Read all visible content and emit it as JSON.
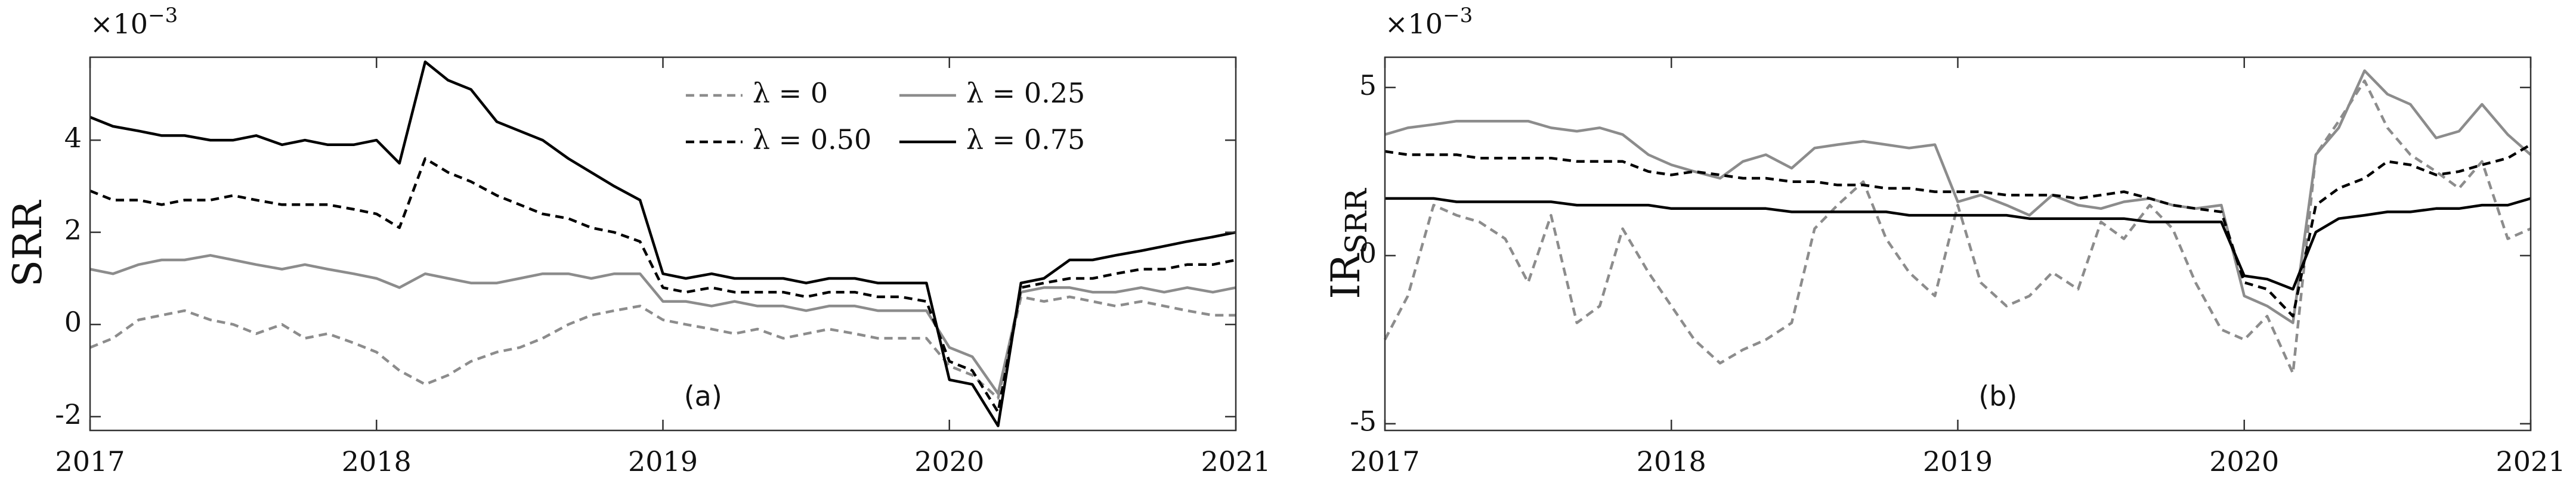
{
  "chart_data": [
    {
      "type": "line",
      "ylabel": "SRR",
      "multiplier": "×10",
      "multiplier_exponent": "−3",
      "panel_label": "(a)",
      "xlim": [
        2017,
        2021
      ],
      "xticks": [
        2017,
        2018,
        2019,
        2020,
        2021
      ],
      "ylim": [
        -2.3,
        5.8
      ],
      "yticks": [
        -2,
        0,
        2,
        4
      ],
      "grid": false,
      "legend": "top-right",
      "x": [
        2017,
        2017.08,
        2017.17,
        2017.25,
        2017.33,
        2017.42,
        2017.5,
        2017.58,
        2017.67,
        2017.75,
        2017.83,
        2017.92,
        2018,
        2018.08,
        2018.17,
        2018.25,
        2018.33,
        2018.42,
        2018.5,
        2018.58,
        2018.67,
        2018.75,
        2018.83,
        2018.92,
        2019,
        2019.08,
        2019.17,
        2019.25,
        2019.33,
        2019.42,
        2019.5,
        2019.58,
        2019.67,
        2019.75,
        2019.83,
        2019.92,
        2020,
        2020.08,
        2020.17,
        2020.25,
        2020.33,
        2020.42,
        2020.5,
        2020.58,
        2020.67,
        2020.75,
        2020.83,
        2020.92,
        2021
      ],
      "series": [
        {
          "name": "λ = 0",
          "color": "#8c8c8c",
          "line_style": "dash",
          "values": [
            -0.5,
            -0.3,
            0.1,
            0.2,
            0.3,
            0.1,
            0.0,
            -0.2,
            0.0,
            -0.3,
            -0.2,
            -0.4,
            -0.6,
            -1.0,
            -1.3,
            -1.1,
            -0.8,
            -0.6,
            -0.5,
            -0.3,
            0.0,
            0.2,
            0.3,
            0.4,
            0.1,
            0.0,
            -0.1,
            -0.2,
            -0.1,
            -0.3,
            -0.2,
            -0.1,
            -0.2,
            -0.3,
            -0.3,
            -0.3,
            -0.9,
            -1.1,
            -1.6,
            0.6,
            0.5,
            0.6,
            0.5,
            0.4,
            0.5,
            0.4,
            0.3,
            0.2,
            0.2
          ]
        },
        {
          "name": "λ = 0.25",
          "color": "#8c8c8c",
          "line_style": "solid",
          "values": [
            1.2,
            1.1,
            1.3,
            1.4,
            1.4,
            1.5,
            1.4,
            1.3,
            1.2,
            1.3,
            1.2,
            1.1,
            1.0,
            0.8,
            1.1,
            1.0,
            0.9,
            0.9,
            1.0,
            1.1,
            1.1,
            1.0,
            1.1,
            1.1,
            0.5,
            0.5,
            0.4,
            0.5,
            0.4,
            0.4,
            0.3,
            0.4,
            0.4,
            0.3,
            0.3,
            0.3,
            -0.5,
            -0.7,
            -1.5,
            0.7,
            0.8,
            0.8,
            0.7,
            0.7,
            0.8,
            0.7,
            0.8,
            0.7,
            0.8
          ]
        },
        {
          "name": "λ = 0.50",
          "color": "#000000",
          "line_style": "dash",
          "values": [
            2.9,
            2.7,
            2.7,
            2.6,
            2.7,
            2.7,
            2.8,
            2.7,
            2.6,
            2.6,
            2.6,
            2.5,
            2.4,
            2.1,
            3.6,
            3.3,
            3.1,
            2.8,
            2.6,
            2.4,
            2.3,
            2.1,
            2.0,
            1.8,
            0.8,
            0.7,
            0.8,
            0.7,
            0.7,
            0.7,
            0.6,
            0.7,
            0.7,
            0.6,
            0.6,
            0.5,
            -0.8,
            -1.0,
            -1.9,
            0.8,
            0.9,
            1.0,
            1.0,
            1.1,
            1.2,
            1.2,
            1.3,
            1.3,
            1.4
          ]
        },
        {
          "name": "λ = 0.75",
          "color": "#000000",
          "line_style": "solid",
          "values": [
            4.5,
            4.3,
            4.2,
            4.1,
            4.1,
            4.0,
            4.0,
            4.1,
            3.9,
            4.0,
            3.9,
            3.9,
            4.0,
            3.5,
            5.7,
            5.3,
            5.1,
            4.4,
            4.2,
            4.0,
            3.6,
            3.3,
            3.0,
            2.7,
            1.1,
            1.0,
            1.1,
            1.0,
            1.0,
            1.0,
            0.9,
            1.0,
            1.0,
            0.9,
            0.9,
            0.9,
            -1.2,
            -1.3,
            -2.2,
            0.9,
            1.0,
            1.4,
            1.4,
            1.5,
            1.6,
            1.7,
            1.8,
            1.9,
            2.0
          ]
        }
      ]
    },
    {
      "type": "line",
      "ylabel": "IR",
      "ylabel_subscript": "SRR",
      "multiplier": "×10",
      "multiplier_exponent": "−3",
      "panel_label": "(b)",
      "xlim": [
        2017,
        2021
      ],
      "xticks": [
        2017,
        2018,
        2019,
        2020,
        2021
      ],
      "ylim": [
        -5.2,
        5.9
      ],
      "yticks": [
        -5,
        0,
        5
      ],
      "grid": false,
      "x": [
        2017,
        2017.08,
        2017.17,
        2017.25,
        2017.33,
        2017.42,
        2017.5,
        2017.58,
        2017.67,
        2017.75,
        2017.83,
        2017.92,
        2018,
        2018.08,
        2018.17,
        2018.25,
        2018.33,
        2018.42,
        2018.5,
        2018.58,
        2018.67,
        2018.75,
        2018.83,
        2018.92,
        2019,
        2019.08,
        2019.17,
        2019.25,
        2019.33,
        2019.42,
        2019.5,
        2019.58,
        2019.67,
        2019.75,
        2019.83,
        2019.92,
        2020,
        2020.08,
        2020.17,
        2020.25,
        2020.33,
        2020.42,
        2020.5,
        2020.58,
        2020.67,
        2020.75,
        2020.83,
        2020.92,
        2021
      ],
      "series": [
        {
          "color": "#8c8c8c",
          "line_style": "dash",
          "values": [
            -2.5,
            -1.2,
            1.5,
            1.2,
            1.0,
            0.5,
            -0.8,
            1.2,
            -2.0,
            -1.5,
            0.8,
            -0.5,
            -1.5,
            -2.5,
            -3.2,
            -2.8,
            -2.5,
            -2.0,
            0.8,
            1.5,
            2.2,
            0.5,
            -0.5,
            -1.2,
            1.5,
            -0.8,
            -1.5,
            -1.2,
            -0.5,
            -1.0,
            1.0,
            0.5,
            1.5,
            0.8,
            -0.8,
            -2.2,
            -2.5,
            -1.8,
            -3.5,
            3.0,
            4.0,
            5.2,
            3.8,
            3.0,
            2.5,
            2.0,
            2.8,
            0.5,
            0.8
          ]
        },
        {
          "color": "#8c8c8c",
          "line_style": "solid",
          "values": [
            3.6,
            3.8,
            3.9,
            4.0,
            4.0,
            4.0,
            4.0,
            3.8,
            3.7,
            3.8,
            3.6,
            3.0,
            2.7,
            2.5,
            2.3,
            2.8,
            3.0,
            2.6,
            3.2,
            3.3,
            3.4,
            3.3,
            3.2,
            3.3,
            1.6,
            1.8,
            1.5,
            1.2,
            1.8,
            1.5,
            1.4,
            1.6,
            1.7,
            1.5,
            1.4,
            1.5,
            -1.2,
            -1.5,
            -2.0,
            3.0,
            3.8,
            5.5,
            4.8,
            4.5,
            3.5,
            3.7,
            4.5,
            3.6,
            3.0
          ]
        },
        {
          "color": "#000000",
          "line_style": "dash",
          "values": [
            3.1,
            3.0,
            3.0,
            3.0,
            2.9,
            2.9,
            2.9,
            2.9,
            2.8,
            2.8,
            2.8,
            2.5,
            2.4,
            2.5,
            2.4,
            2.3,
            2.3,
            2.2,
            2.2,
            2.1,
            2.1,
            2.0,
            2.0,
            1.9,
            1.9,
            1.9,
            1.8,
            1.8,
            1.8,
            1.7,
            1.8,
            1.9,
            1.7,
            1.5,
            1.4,
            1.3,
            -0.8,
            -1.0,
            -1.8,
            1.5,
            2.0,
            2.3,
            2.8,
            2.7,
            2.4,
            2.5,
            2.7,
            2.9,
            3.3
          ]
        },
        {
          "color": "#000000",
          "line_style": "solid",
          "values": [
            1.7,
            1.7,
            1.7,
            1.6,
            1.6,
            1.6,
            1.6,
            1.6,
            1.5,
            1.5,
            1.5,
            1.5,
            1.4,
            1.4,
            1.4,
            1.4,
            1.4,
            1.3,
            1.3,
            1.3,
            1.3,
            1.3,
            1.2,
            1.2,
            1.2,
            1.2,
            1.2,
            1.1,
            1.1,
            1.1,
            1.1,
            1.1,
            1.0,
            1.0,
            1.0,
            1.0,
            -0.6,
            -0.7,
            -1.0,
            0.7,
            1.1,
            1.2,
            1.3,
            1.3,
            1.4,
            1.4,
            1.5,
            1.5,
            1.7
          ]
        }
      ]
    }
  ]
}
